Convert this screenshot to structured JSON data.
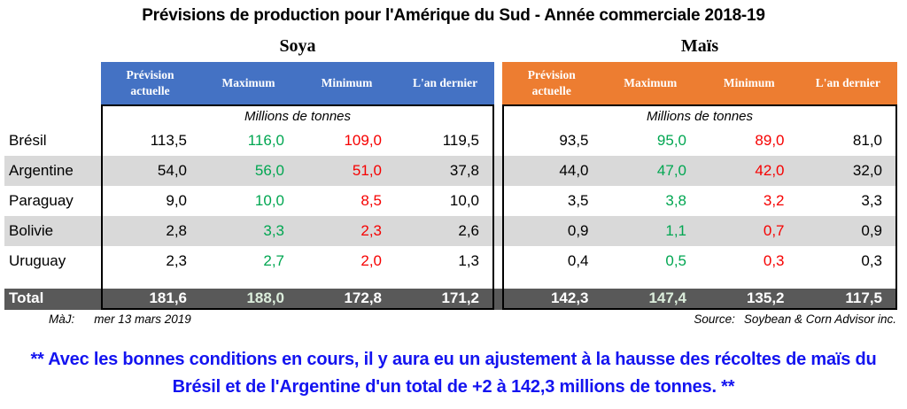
{
  "title": "Prévisions de production pour l'Amérique du Sud - Année commerciale 2018-19",
  "sections": [
    {
      "label": "Soya"
    },
    {
      "label": "Maïs"
    }
  ],
  "columns": [
    {
      "label": "Prévision actuelle"
    },
    {
      "label": "Maximum"
    },
    {
      "label": "Minimum"
    },
    {
      "label": "L'an dernier"
    }
  ],
  "unit_label": "Millions de tonnes",
  "total_label": "Total",
  "footer": {
    "updated_label": "MàJ:",
    "updated_value": "mer 13 mars 2019",
    "source_label": "Source:",
    "source_value": "Soybean & Corn Advisor inc."
  },
  "note": {
    "line1": "** Avec les bonnes conditions en cours, il y aura eu un ajustement à la hausse des récoltes de maïs du",
    "line2": "Brésil et de l'Argentine d'un total de +2 à 142,3 millions de tonnes. **"
  },
  "colors": {
    "soya_header": "#4472C4",
    "mais_header": "#ED7D31",
    "row_stripe": "#D9D9D9",
    "total_band": "#595959",
    "maximum_text": "#00A651",
    "minimum_text": "#F60000",
    "total_maximum_text": "#DCEEDC",
    "note_text": "#1414F0"
  },
  "chart_data": {
    "type": "table",
    "title": "Prévisions de production pour l'Amérique du Sud - Année commerciale 2018-19",
    "unit": "Millions de tonnes",
    "section_names": [
      "Soya",
      "Maïs"
    ],
    "column_headers": [
      "Prévision actuelle",
      "Maximum",
      "Minimum",
      "L'an dernier"
    ],
    "row_labels": [
      "Brésil",
      "Argentine",
      "Paraguay",
      "Bolivie",
      "Uruguay"
    ],
    "total_label": "Total",
    "soya": {
      "rows": [
        [
          113.5,
          116.0,
          109.0,
          119.5
        ],
        [
          54.0,
          56.0,
          51.0,
          37.8
        ],
        [
          9.0,
          10.0,
          8.5,
          10.0
        ],
        [
          2.8,
          3.3,
          2.3,
          2.6
        ],
        [
          2.3,
          2.7,
          2.0,
          1.3
        ]
      ],
      "total": [
        181.6,
        188.0,
        172.8,
        171.2
      ]
    },
    "mais": {
      "rows": [
        [
          93.5,
          95.0,
          89.0,
          81.0
        ],
        [
          44.0,
          47.0,
          42.0,
          32.0
        ],
        [
          3.5,
          3.8,
          3.2,
          3.3
        ],
        [
          0.9,
          1.1,
          0.7,
          0.9
        ],
        [
          0.4,
          0.5,
          0.3,
          0.3
        ]
      ],
      "total": [
        142.3,
        147.4,
        135.2,
        117.5
      ]
    }
  }
}
